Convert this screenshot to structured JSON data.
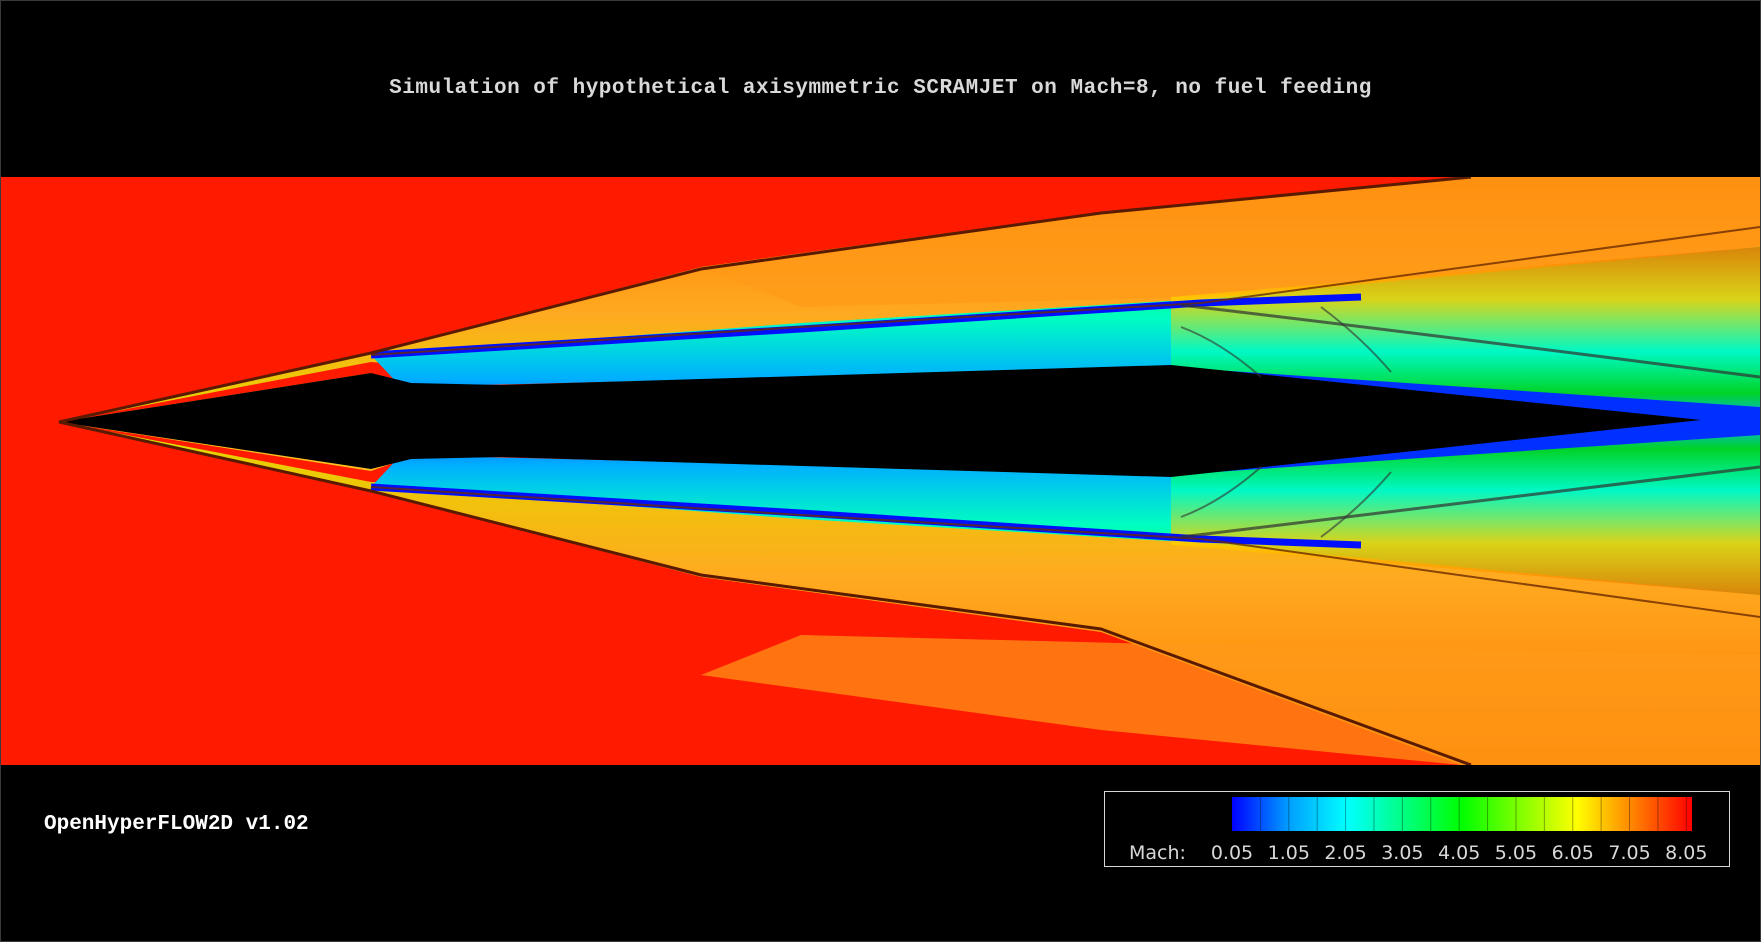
{
  "title": "Simulation of hypothetical axisymmetric SCRAMJET on Mach=8, no fuel feeding",
  "brand": "OpenHyperFLOW2D v1.02",
  "colorbar": {
    "label": "Mach:",
    "ticks": [
      "0.05",
      "1.05",
      "2.05",
      "3.05",
      "4.05",
      "5.05",
      "6.05",
      "7.05",
      "8.05"
    ],
    "range": [
      0.05,
      8.05
    ],
    "colors": [
      "#0000ff",
      "#00a0ff",
      "#00ffff",
      "#00ff80",
      "#00ff00",
      "#80ff00",
      "#ffff00",
      "#ff8000",
      "#ff0000"
    ]
  },
  "field": {
    "freestream_color": "#ff1a00",
    "body_color": "#000000"
  }
}
